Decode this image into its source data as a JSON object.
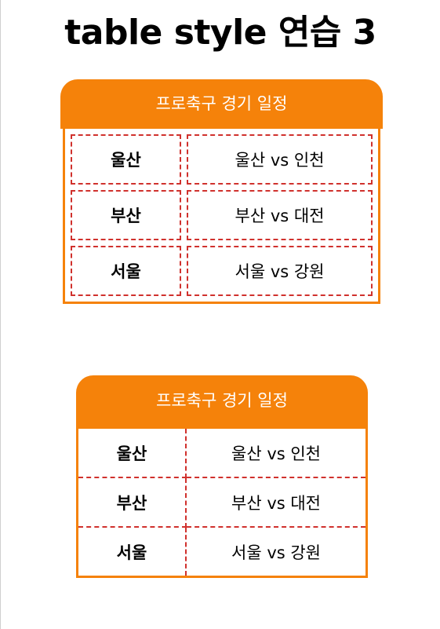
{
  "page": {
    "title": "table style 연습 3"
  },
  "colors": {
    "accent": "#f5820a",
    "dashed_border": "#d0312d",
    "caption_text": "#ffffff"
  },
  "tables": [
    {
      "caption": "프로축구 경기 일정",
      "rows": [
        {
          "city": "울산",
          "match": "울산 vs 인천"
        },
        {
          "city": "부산",
          "match": "부산 vs 대전"
        },
        {
          "city": "서울",
          "match": "서울 vs 강원"
        }
      ]
    },
    {
      "caption": "프로축구 경기 일정",
      "rows": [
        {
          "city": "울산",
          "match": "울산 vs 인천"
        },
        {
          "city": "부산",
          "match": "부산 vs 대전"
        },
        {
          "city": "서울",
          "match": "서울 vs 강원"
        }
      ]
    }
  ]
}
